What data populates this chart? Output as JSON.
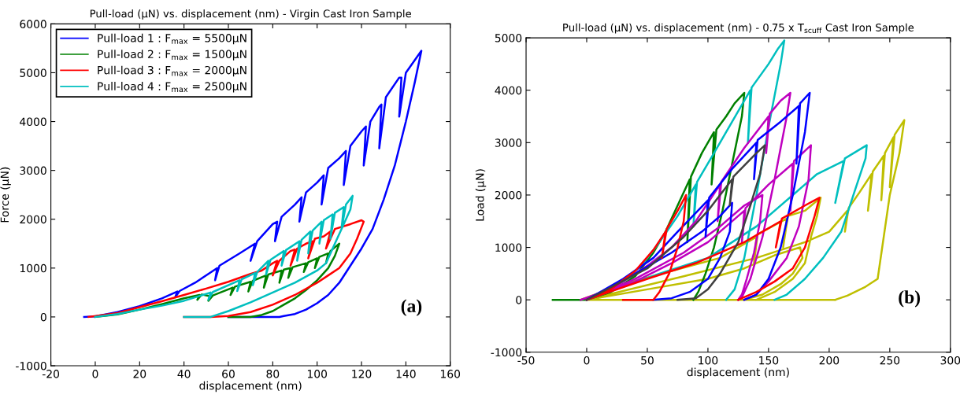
{
  "chart_data": [
    {
      "type": "line",
      "title": "Pull-load (μN) vs. displacement (nm) - Virgin Cast Iron Sample",
      "xlabel": "displacement (nm)",
      "ylabel": "Force (μN)",
      "xlim": [
        -20,
        160
      ],
      "ylim": [
        -1000,
        6000
      ],
      "xticks": [
        -20,
        0,
        20,
        40,
        60,
        80,
        100,
        120,
        140,
        160
      ],
      "yticks": [
        -1000,
        0,
        1000,
        2000,
        3000,
        4000,
        5000,
        6000
      ],
      "legend": "top left",
      "annotations": [
        "(a)"
      ],
      "series": [
        {
          "name": "Pull-load 1 : F$_{max}$ = 5500μN",
          "color": "#0000ff",
          "x": [
            -5,
            0,
            10,
            20,
            30,
            37,
            36,
            38,
            45,
            55,
            54,
            56,
            65,
            72,
            70,
            73,
            80,
            82,
            81,
            84,
            90,
            93,
            92,
            95,
            100,
            103,
            102,
            105,
            110,
            113,
            112,
            115,
            120,
            122,
            121,
            124,
            128,
            129,
            128,
            131,
            137,
            138,
            137,
            140,
            147,
            144,
            140,
            135,
            130,
            125,
            120,
            115,
            110,
            105,
            100,
            95,
            90,
            85,
            83,
            60
          ],
          "values": [
            0,
            10,
            100,
            220,
            380,
            520,
            400,
            530,
            700,
            1000,
            750,
            1050,
            1300,
            1500,
            1150,
            1550,
            1900,
            1950,
            1550,
            2050,
            2300,
            2450,
            1950,
            2550,
            2750,
            2900,
            2300,
            3050,
            3250,
            3400,
            2700,
            3500,
            3800,
            3900,
            3100,
            4000,
            4300,
            4350,
            3450,
            4500,
            4900,
            4900,
            4100,
            5000,
            5450,
            4800,
            4000,
            3100,
            2400,
            1800,
            1400,
            1050,
            700,
            450,
            280,
            150,
            60,
            20,
            0,
            0
          ]
        },
        {
          "name": "Pull-load 2 : F$_{max}$ = 1500μN",
          "color": "#008000",
          "x": [
            0,
            10,
            20,
            30,
            40,
            47,
            46,
            48,
            52,
            51,
            53,
            62,
            61,
            63,
            70,
            69,
            71,
            77,
            76,
            78,
            84,
            83,
            85,
            88,
            87,
            89,
            95,
            94,
            96,
            100,
            99,
            101,
            105,
            104,
            106,
            110,
            108,
            105,
            100,
            95,
            90,
            85,
            80,
            75,
            70,
            60
          ],
          "values": [
            0,
            50,
            150,
            260,
            380,
            450,
            350,
            460,
            420,
            330,
            440,
            600,
            450,
            620,
            720,
            520,
            740,
            850,
            600,
            870,
            950,
            700,
            970,
            1000,
            800,
            1020,
            1100,
            920,
            1120,
            1200,
            1000,
            1230,
            1300,
            1100,
            1350,
            1500,
            1250,
            1000,
            750,
            550,
            380,
            250,
            120,
            40,
            0,
            0
          ]
        },
        {
          "name": "Pull-load 3 : F$_{max}$ = 2000μN",
          "color": "#ff0000",
          "x": [
            -3,
            10,
            20,
            30,
            40,
            50,
            60,
            70,
            75,
            80,
            82,
            80,
            83,
            88,
            90,
            88,
            91,
            95,
            98,
            96,
            99,
            103,
            106,
            104,
            108,
            115,
            120,
            121,
            118,
            115,
            110,
            105,
            100,
            90,
            80,
            70,
            60,
            52,
            40
          ],
          "values": [
            0,
            80,
            200,
            320,
            450,
            580,
            720,
            880,
            950,
            1100,
            1150,
            850,
            1150,
            1350,
            1380,
            1050,
            1400,
            1500,
            1550,
            1200,
            1600,
            1650,
            1750,
            1400,
            1800,
            1900,
            1980,
            1950,
            1600,
            1300,
            1000,
            850,
            700,
            450,
            250,
            100,
            20,
            0,
            0
          ]
        },
        {
          "name": "Pull-load 4 : F$_{max}$ = 2500μN",
          "color": "#00bfbf",
          "x": [
            0,
            10,
            20,
            30,
            40,
            52,
            51,
            53,
            65,
            64,
            66,
            72,
            71,
            73,
            78,
            77,
            79,
            85,
            84,
            86,
            92,
            91,
            93,
            97,
            96,
            98,
            102,
            101,
            103,
            107,
            106,
            108,
            112,
            111,
            113,
            116,
            115,
            112,
            108,
            104,
            100,
            90,
            80,
            70,
            60,
            52,
            40
          ],
          "values": [
            0,
            60,
            150,
            230,
            330,
            500,
            350,
            510,
            750,
            530,
            770,
            900,
            650,
            920,
            1150,
            870,
            1170,
            1350,
            1050,
            1370,
            1550,
            1150,
            1580,
            1750,
            1300,
            1770,
            1950,
            1500,
            1980,
            2100,
            1600,
            2130,
            2250,
            1800,
            2300,
            2480,
            2200,
            1900,
            1500,
            1100,
            950,
            700,
            500,
            300,
            120,
            0,
            0
          ]
        }
      ]
    },
    {
      "type": "line",
      "title": "Pull-load (μN) vs. displacement (nm) - 0.75 x T$_{scuff}$ Cast Iron Sample",
      "xlabel": "displacement (nm)",
      "ylabel": "Load (μN)",
      "xlim": [
        -50,
        300
      ],
      "ylim": [
        -1000,
        5000
      ],
      "xticks": [
        -50,
        0,
        50,
        100,
        150,
        200,
        250,
        300
      ],
      "yticks": [
        -1000,
        0,
        1000,
        2000,
        3000,
        4000,
        5000
      ],
      "annotations": [
        "(b)"
      ],
      "series": [
        {
          "color": "#bfbf00",
          "x": [
            205,
            0,
            null,
            0,
            80,
            140,
            180,
            200,
            215,
            213,
            216,
            225,
            235,
            232,
            236,
            245,
            243,
            246,
            253,
            250,
            254,
            262,
            258,
            250,
            245,
            240,
            230,
            215,
            205,
            null,
            -5,
            30,
            70,
            110,
            140,
            138,
            141,
            165,
            162,
            166,
            180,
            193,
            190,
            185,
            180,
            170,
            155,
            140,
            null,
            0,
            50,
            100,
            130,
            155,
            176,
            178,
            170,
            160,
            145,
            130
          ],
          "values": [
            0,
            0,
            null,
            0,
            450,
            800,
            1100,
            1300,
            1700,
            1300,
            1750,
            2050,
            2400,
            1700,
            2450,
            2750,
            1900,
            2800,
            3100,
            2150,
            3150,
            3430,
            2800,
            2000,
            1200,
            400,
            250,
            80,
            0,
            null,
            0,
            300,
            550,
            800,
            1200,
            700,
            1250,
            1550,
            1000,
            1600,
            1700,
            1950,
            1600,
            1200,
            700,
            400,
            150,
            0,
            null,
            0,
            200,
            400,
            600,
            850,
            1000,
            800,
            500,
            300,
            100,
            0
          ]
        },
        {
          "color": "#008000",
          "x": [
            -28,
            0,
            20,
            40,
            55,
            65,
            75,
            85,
            83,
            86,
            95,
            105,
            103,
            107,
            115,
            122,
            130,
            128,
            120,
            112,
            105,
            98,
            92,
            88
          ],
          "values": [
            0,
            0,
            150,
            450,
            900,
            1300,
            1800,
            2300,
            1100,
            2350,
            2800,
            3200,
            2200,
            3250,
            3500,
            3750,
            3950,
            3500,
            2600,
            1700,
            1000,
            500,
            150,
            0
          ]
        },
        {
          "color": "#00bfbf",
          "x": [
            0,
            25,
            45,
            60,
            75,
            90,
            88,
            91,
            105,
            120,
            135,
            133,
            136,
            150,
            158,
            163,
            160,
            150,
            140,
            130,
            122,
            115,
            null,
            0,
            60,
            100,
            140,
            170,
            190,
            212,
            205,
            213,
            231,
            230,
            220,
            210,
            195,
            180,
            165,
            155
          ],
          "values": [
            0,
            250,
            650,
            1100,
            1600,
            2200,
            1400,
            2250,
            2800,
            3400,
            4000,
            3000,
            4050,
            4500,
            4800,
            4950,
            4500,
            3300,
            2000,
            800,
            200,
            0,
            null,
            0,
            500,
            800,
            1400,
            2000,
            2400,
            2650,
            1850,
            2700,
            2950,
            2700,
            2000,
            1300,
            800,
            400,
            100,
            0
          ]
        },
        {
          "color": "#bf00bf",
          "x": [
            -5,
            20,
            50,
            70,
            90,
            110,
            108,
            111,
            130,
            150,
            148,
            151,
            160,
            168,
            165,
            155,
            145,
            135,
            128,
            125,
            null,
            0,
            40,
            70,
            100,
            130,
            128,
            131,
            150,
            170,
            168,
            171,
            185,
            183,
            175,
            165,
            150,
            140,
            130,
            null,
            0,
            40,
            80,
            110,
            130,
            145,
            143,
            138,
            132,
            128,
            125
          ],
          "values": [
            0,
            200,
            650,
            1000,
            1500,
            2200,
            1500,
            2250,
            2900,
            3500,
            2800,
            3550,
            3800,
            3950,
            3500,
            2300,
            1200,
            400,
            50,
            0,
            null,
            0,
            350,
            700,
            1100,
            1700,
            1100,
            1750,
            2200,
            2600,
            1700,
            2650,
            2950,
            2300,
            1400,
            800,
            350,
            100,
            0,
            null,
            0,
            400,
            900,
            1400,
            1800,
            2000,
            1500,
            900,
            400,
            100,
            0
          ]
        },
        {
          "color": "#0000ff",
          "x": [
            0,
            30,
            55,
            75,
            100,
            98,
            101,
            120,
            140,
            138,
            141,
            160,
            175,
            173,
            176,
            184,
            180,
            170,
            160,
            150,
            140,
            130,
            null,
            0,
            40,
            70,
            95,
            110,
            120,
            118,
            110,
            100,
            85,
            70,
            55
          ],
          "values": [
            0,
            400,
            800,
            1300,
            1900,
            1200,
            1950,
            2500,
            3000,
            2300,
            3050,
            3400,
            3700,
            2600,
            3750,
            3950,
            3200,
            2000,
            1000,
            400,
            100,
            0,
            null,
            0,
            500,
            900,
            1300,
            1600,
            1850,
            1300,
            800,
            400,
            150,
            30,
            0
          ]
        },
        {
          "color": "#ff0000",
          "x": [
            0,
            20,
            40,
            55,
            65,
            62,
            66,
            75,
            82,
            80,
            75,
            68,
            60,
            55,
            30,
            null,
            0,
            50,
            90,
            130,
            160,
            156,
            161,
            180,
            192,
            188,
            180,
            170,
            155,
            140,
            125
          ],
          "values": [
            0,
            200,
            550,
            950,
            1300,
            800,
            1350,
            1700,
            2000,
            1500,
            1000,
            500,
            150,
            0,
            0,
            null,
            0,
            400,
            700,
            1100,
            1500,
            1000,
            1550,
            1800,
            1950,
            1600,
            1000,
            600,
            350,
            150,
            0
          ]
        },
        {
          "color": "#404040",
          "x": [
            0,
            50,
            80,
            100,
            120,
            118,
            121,
            140,
            147,
            143,
            135,
            125,
            110,
            100,
            90,
            75
          ],
          "values": [
            0,
            600,
            1200,
            1700,
            2300,
            1800,
            2350,
            2800,
            2950,
            2400,
            1800,
            1100,
            500,
            200,
            30,
            0
          ]
        }
      ]
    }
  ]
}
